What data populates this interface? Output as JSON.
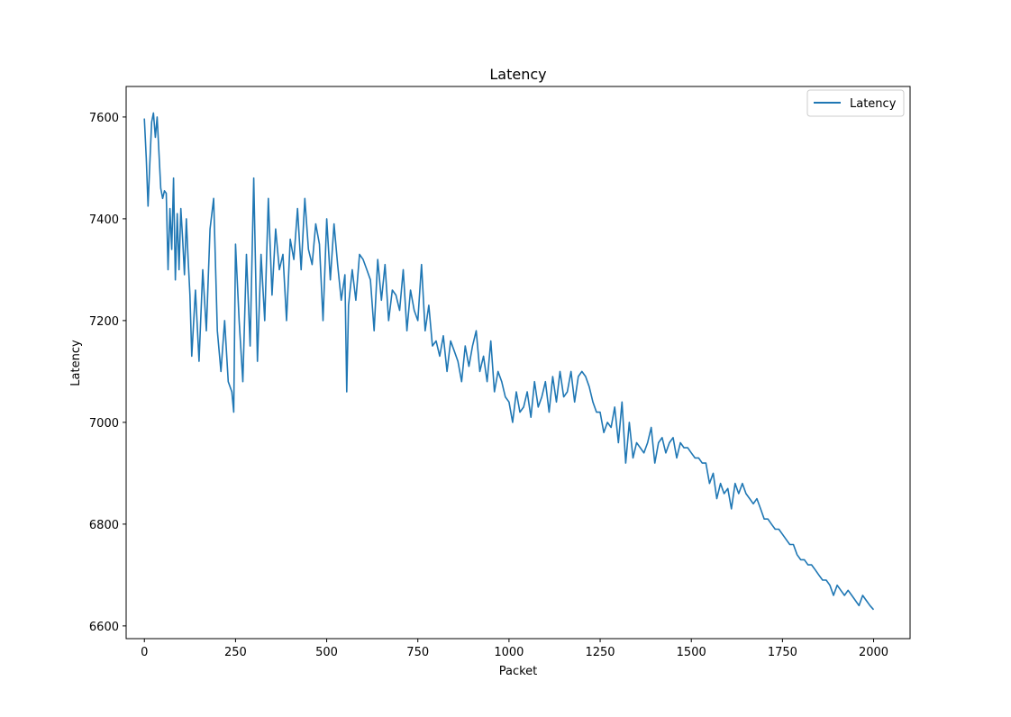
{
  "chart_data": {
    "type": "line",
    "title": "Latency",
    "xlabel": "Packet",
    "ylabel": "Latency",
    "xlim": [
      -50,
      2100
    ],
    "ylim": [
      6575,
      7660
    ],
    "xticks": [
      0,
      250,
      500,
      750,
      1000,
      1250,
      1500,
      1750,
      2000
    ],
    "yticks": [
      6600,
      6800,
      7000,
      7200,
      7400,
      7600
    ],
    "grid": false,
    "legend": {
      "position": "top-right",
      "entries": [
        "Latency"
      ]
    },
    "series": [
      {
        "name": "Latency",
        "color": "#1f77b4",
        "x": [
          0,
          5,
          10,
          15,
          20,
          25,
          30,
          35,
          40,
          45,
          50,
          55,
          60,
          65,
          70,
          75,
          80,
          85,
          90,
          95,
          100,
          105,
          110,
          115,
          120,
          125,
          130,
          140,
          150,
          160,
          170,
          180,
          190,
          200,
          210,
          220,
          230,
          240,
          245,
          250,
          260,
          270,
          280,
          290,
          300,
          310,
          320,
          330,
          340,
          350,
          360,
          370,
          380,
          390,
          400,
          410,
          420,
          430,
          440,
          450,
          460,
          470,
          480,
          490,
          500,
          510,
          520,
          530,
          540,
          550,
          555,
          560,
          570,
          580,
          590,
          600,
          610,
          620,
          630,
          640,
          650,
          660,
          670,
          680,
          690,
          700,
          710,
          720,
          730,
          740,
          750,
          760,
          770,
          780,
          790,
          800,
          810,
          820,
          830,
          840,
          850,
          860,
          870,
          880,
          890,
          900,
          910,
          920,
          930,
          940,
          950,
          960,
          970,
          980,
          990,
          1000,
          1010,
          1020,
          1030,
          1040,
          1050,
          1060,
          1070,
          1080,
          1090,
          1100,
          1110,
          1120,
          1130,
          1140,
          1150,
          1160,
          1170,
          1180,
          1190,
          1200,
          1210,
          1220,
          1230,
          1240,
          1250,
          1260,
          1270,
          1280,
          1290,
          1300,
          1310,
          1320,
          1330,
          1340,
          1350,
          1360,
          1370,
          1380,
          1390,
          1400,
          1410,
          1420,
          1430,
          1440,
          1450,
          1460,
          1470,
          1480,
          1490,
          1500,
          1510,
          1520,
          1530,
          1540,
          1550,
          1560,
          1570,
          1580,
          1590,
          1600,
          1610,
          1620,
          1630,
          1640,
          1650,
          1660,
          1670,
          1680,
          1690,
          1700,
          1710,
          1720,
          1730,
          1740,
          1750,
          1760,
          1770,
          1780,
          1790,
          1800,
          1810,
          1820,
          1830,
          1840,
          1850,
          1860,
          1870,
          1880,
          1890,
          1900,
          1910,
          1920,
          1930,
          1940,
          1950,
          1960,
          1970,
          1980,
          1990,
          2000
        ],
        "y": [
          7597,
          7520,
          7425,
          7510,
          7590,
          7608,
          7560,
          7600,
          7530,
          7460,
          7440,
          7455,
          7450,
          7300,
          7420,
          7340,
          7480,
          7280,
          7410,
          7300,
          7420,
          7360,
          7290,
          7400,
          7320,
          7250,
          7130,
          7260,
          7120,
          7300,
          7180,
          7380,
          7440,
          7180,
          7100,
          7200,
          7080,
          7060,
          7020,
          7350,
          7200,
          7080,
          7330,
          7150,
          7480,
          7120,
          7330,
          7200,
          7440,
          7250,
          7380,
          7300,
          7330,
          7200,
          7360,
          7320,
          7420,
          7300,
          7440,
          7340,
          7310,
          7390,
          7350,
          7200,
          7400,
          7280,
          7390,
          7310,
          7240,
          7290,
          7060,
          7230,
          7300,
          7240,
          7330,
          7320,
          7300,
          7280,
          7180,
          7320,
          7240,
          7310,
          7200,
          7260,
          7250,
          7220,
          7300,
          7180,
          7260,
          7220,
          7200,
          7310,
          7180,
          7230,
          7150,
          7160,
          7130,
          7170,
          7100,
          7160,
          7140,
          7120,
          7080,
          7150,
          7110,
          7150,
          7180,
          7100,
          7130,
          7080,
          7160,
          7060,
          7100,
          7080,
          7050,
          7040,
          7000,
          7060,
          7020,
          7030,
          7060,
          7010,
          7080,
          7030,
          7050,
          7080,
          7020,
          7090,
          7040,
          7100,
          7050,
          7060,
          7100,
          7040,
          7090,
          7100,
          7090,
          7070,
          7040,
          7020,
          7020,
          6980,
          7000,
          6990,
          7030,
          6960,
          7040,
          6920,
          7000,
          6930,
          6960,
          6950,
          6940,
          6960,
          6990,
          6920,
          6960,
          6970,
          6940,
          6960,
          6970,
          6930,
          6960,
          6950,
          6950,
          6940,
          6930,
          6930,
          6920,
          6920,
          6880,
          6900,
          6850,
          6880,
          6860,
          6870,
          6830,
          6880,
          6860,
          6880,
          6860,
          6850,
          6840,
          6850,
          6830,
          6810,
          6810,
          6800,
          6790,
          6790,
          6780,
          6770,
          6760,
          6760,
          6740,
          6730,
          6730,
          6720,
          6720,
          6710,
          6700,
          6690,
          6690,
          6680,
          6660,
          6680,
          6670,
          6660,
          6670,
          6660,
          6650,
          6640,
          6660,
          6650,
          6640,
          6632
        ]
      }
    ]
  }
}
